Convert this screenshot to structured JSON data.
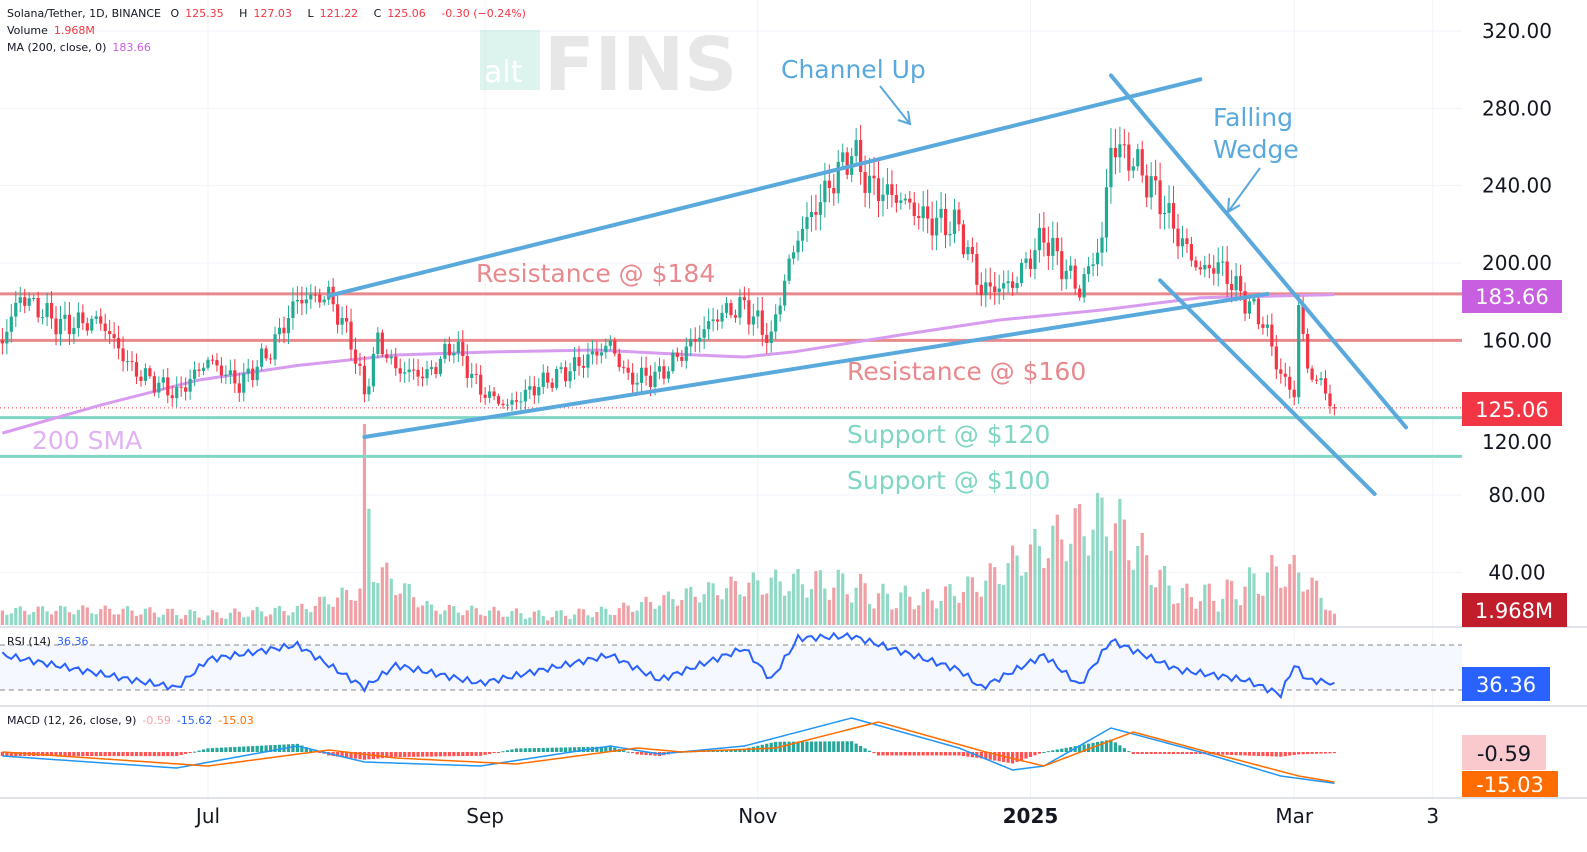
{
  "header": {
    "symbol": "Solana/Tether, 1D, BINANCE",
    "open_label": "O",
    "open": "125.35",
    "high_label": "H",
    "high": "127.03",
    "low_label": "L",
    "low": "121.22",
    "close_label": "C",
    "close": "125.06",
    "change": "-0.30 (−0.24%)",
    "volume_label": "Volume",
    "volume": "1.968M",
    "ma_label": "MA (200, close, 0)",
    "ma": "183.66"
  },
  "rsi_legend": {
    "label": "RSI (14)",
    "value": "36.36"
  },
  "macd_legend": {
    "label": "MACD (12, 26, close, 9)",
    "hist": "-0.59",
    "macd": "-15.62",
    "signal": "-15.03"
  },
  "watermark": {
    "text_alt": "alt",
    "text_fins": "FINS"
  },
  "badges": {
    "price": "125.06",
    "ma": "183.66",
    "volume": "1.968M",
    "rsi": "36.36",
    "macd_hist": "-0.59",
    "macd_signal": "-15.03"
  },
  "colors": {
    "up": "#22ab94",
    "down": "#f23645",
    "ma": "#d79cf0",
    "trendline": "#5aa9dd",
    "resistance": "#e8898d",
    "support": "#7fd6c4",
    "rsi": "#2962ff",
    "macd": "#2196f3",
    "signal": "#ff6d00"
  },
  "annotations": {
    "channel_up": "Channel Up",
    "falling_wedge_1": "Falling",
    "falling_wedge_2": "Wedge",
    "resistance_184": "Resistance @ $184",
    "resistance_160": "Resistance @ $160",
    "support_120": "Support @ $120",
    "support_100": "Support @ $100",
    "sma_200": "200 SMA"
  },
  "chart_data": {
    "type": "candlestick",
    "title": "Solana/Tether, 1D, BINANCE",
    "price_axis": {
      "ticks": [
        "320.00",
        "280.00",
        "240.00",
        "200.00",
        "160.00",
        "120.00",
        "80.00",
        "40.00"
      ],
      "ylim": [
        20,
        330
      ]
    },
    "time_axis": {
      "ticks": [
        {
          "label": "Jul",
          "date": "2024-07-01"
        },
        {
          "label": "Sep",
          "date": "2024-09-01"
        },
        {
          "label": "Nov",
          "date": "2024-11-01"
        },
        {
          "label": "2025",
          "date": "2025-01-01",
          "bold": true
        },
        {
          "label": "Mar",
          "date": "2025-03-01"
        },
        {
          "label": "3",
          "date": "2025-04-01"
        }
      ]
    },
    "close_keypoints": [
      [
        "2024-05-16",
        160
      ],
      [
        "2024-05-20",
        183
      ],
      [
        "2024-05-29",
        168
      ],
      [
        "2024-06-07",
        170
      ],
      [
        "2024-06-14",
        145
      ],
      [
        "2024-06-24",
        132
      ],
      [
        "2024-07-01",
        150
      ],
      [
        "2024-07-08",
        137
      ],
      [
        "2024-07-15",
        155
      ],
      [
        "2024-07-21",
        181
      ],
      [
        "2024-07-28",
        183
      ],
      [
        "2024-08-02",
        160
      ],
      [
        "2024-08-05",
        132
      ],
      [
        "2024-08-08",
        160
      ],
      [
        "2024-08-12",
        145
      ],
      [
        "2024-08-19",
        142
      ],
      [
        "2024-08-25",
        158
      ],
      [
        "2024-08-31",
        134
      ],
      [
        "2024-09-06",
        126
      ],
      [
        "2024-09-13",
        137
      ],
      [
        "2024-09-20",
        145
      ],
      [
        "2024-09-29",
        158
      ],
      [
        "2024-10-03",
        140
      ],
      [
        "2024-10-10",
        142
      ],
      [
        "2024-10-17",
        158
      ],
      [
        "2024-10-23",
        173
      ],
      [
        "2024-10-29",
        178
      ],
      [
        "2024-11-04",
        160
      ],
      [
        "2024-11-06",
        183
      ],
      [
        "2024-11-10",
        214
      ],
      [
        "2024-11-17",
        240
      ],
      [
        "2024-11-22",
        258
      ],
      [
        "2024-11-26",
        240
      ],
      [
        "2024-12-03",
        233
      ],
      [
        "2024-12-09",
        222
      ],
      [
        "2024-12-16",
        219
      ],
      [
        "2024-12-21",
        186
      ],
      [
        "2024-12-28",
        189
      ],
      [
        "2025-01-04",
        214
      ],
      [
        "2025-01-08",
        199
      ],
      [
        "2025-01-12",
        186
      ],
      [
        "2025-01-17",
        212
      ],
      [
        "2025-01-19",
        261
      ],
      [
        "2025-01-24",
        253
      ],
      [
        "2025-01-30",
        233
      ],
      [
        "2025-02-03",
        214
      ],
      [
        "2025-02-08",
        196
      ],
      [
        "2025-02-12",
        199
      ],
      [
        "2025-02-18",
        181
      ],
      [
        "2025-02-22",
        170
      ],
      [
        "2025-02-26",
        142
      ],
      [
        "2025-03-01",
        132
      ],
      [
        "2025-03-02",
        178
      ],
      [
        "2025-03-04",
        145
      ],
      [
        "2025-03-08",
        134
      ],
      [
        "2025-03-10",
        125.06
      ]
    ],
    "last_candle": {
      "date": "2025-03-10",
      "open": 125.35,
      "high": 127.03,
      "low": 121.22,
      "close": 125.06
    },
    "sma200": [
      [
        "2024-05-16",
        112
      ],
      [
        "2024-06-07",
        126.5
      ],
      [
        "2024-06-29",
        139.5
      ],
      [
        "2024-07-21",
        147
      ],
      [
        "2024-08-12",
        152.4
      ],
      [
        "2024-09-03",
        154
      ],
      [
        "2024-09-26",
        155
      ],
      [
        "2024-10-18",
        152.4
      ],
      [
        "2024-10-29",
        151.4
      ],
      [
        "2024-11-09",
        154
      ],
      [
        "2024-12-03",
        162.8
      ],
      [
        "2024-12-25",
        170.5
      ],
      [
        "2025-01-17",
        175.7
      ],
      [
        "2025-02-08",
        182
      ],
      [
        "2025-03-10",
        183.66
      ]
    ],
    "volume_keypoints_M": [
      [
        "2024-05-16",
        2.5
      ],
      [
        "2024-06-24",
        3
      ],
      [
        "2024-07-21",
        3
      ],
      [
        "2024-08-04",
        6
      ],
      [
        "2024-08-05",
        27
      ],
      [
        "2024-08-07",
        10
      ],
      [
        "2024-08-20",
        3
      ],
      [
        "2024-09-29",
        3
      ],
      [
        "2024-11-06",
        8
      ],
      [
        "2024-11-22",
        10
      ],
      [
        "2024-12-10",
        6
      ],
      [
        "2024-12-21",
        8
      ],
      [
        "2025-01-19",
        20
      ],
      [
        "2025-02-03",
        7
      ],
      [
        "2025-02-26",
        12
      ],
      [
        "2025-03-03",
        10
      ],
      [
        "2025-03-10",
        1.968
      ]
    ],
    "levels": [
      {
        "price": 184,
        "kind": "resistance"
      },
      {
        "price": 160,
        "kind": "resistance"
      },
      {
        "price": 120,
        "kind": "support"
      },
      {
        "price": 100,
        "kind": "support"
      }
    ],
    "trendlines": [
      {
        "name": "channel-upper",
        "from": [
          "2024-07-28",
          183
        ],
        "to": [
          "2025-02-08",
          295
        ]
      },
      {
        "name": "channel-lower",
        "from": [
          "2024-08-05",
          110
        ],
        "to": [
          "2025-02-23",
          184
        ]
      },
      {
        "name": "wedge-upper",
        "from": [
          "2025-01-19",
          297
        ],
        "to": [
          "2025-03-26",
          115
        ]
      },
      {
        "name": "wedge-lower",
        "from": [
          "2025-01-30",
          191
        ],
        "to": [
          "2025-03-19",
          80.5
        ]
      }
    ],
    "rsi": {
      "levels": [
        70,
        30
      ],
      "keypoints": [
        [
          "2024-05-16",
          61
        ],
        [
          "2024-06-14",
          39
        ],
        [
          "2024-06-24",
          32
        ],
        [
          "2024-07-01",
          57
        ],
        [
          "2024-07-21",
          70
        ],
        [
          "2024-08-05",
          32
        ],
        [
          "2024-08-12",
          52
        ],
        [
          "2024-08-31",
          36
        ],
        [
          "2024-09-29",
          61
        ],
        [
          "2024-10-10",
          39
        ],
        [
          "2024-10-29",
          67
        ],
        [
          "2024-11-04",
          39
        ],
        [
          "2024-11-10",
          76
        ],
        [
          "2024-11-22",
          78
        ],
        [
          "2024-12-16",
          48
        ],
        [
          "2024-12-21",
          32
        ],
        [
          "2025-01-04",
          61
        ],
        [
          "2025-01-12",
          34
        ],
        [
          "2025-01-19",
          74
        ],
        [
          "2025-02-03",
          48
        ],
        [
          "2025-02-18",
          39
        ],
        [
          "2025-02-26",
          26
        ],
        [
          "2025-03-01",
          52
        ],
        [
          "2025-03-04",
          39
        ],
        [
          "2025-03-10",
          36.36
        ]
      ]
    },
    "macd": {
      "macd": [
        [
          "2024-05-16",
          -2
        ],
        [
          "2024-06-24",
          -8
        ],
        [
          "2024-07-21",
          3
        ],
        [
          "2024-08-05",
          -5
        ],
        [
          "2024-08-31",
          -7
        ],
        [
          "2024-09-29",
          3
        ],
        [
          "2024-10-10",
          -1
        ],
        [
          "2024-10-29",
          3
        ],
        [
          "2024-11-22",
          17
        ],
        [
          "2024-12-16",
          2
        ],
        [
          "2024-12-28",
          -9
        ],
        [
          "2025-01-04",
          -7
        ],
        [
          "2025-01-19",
          12
        ],
        [
          "2025-02-08",
          0
        ],
        [
          "2025-02-26",
          -12
        ],
        [
          "2025-03-10",
          -15.62
        ]
      ],
      "signal": [
        [
          "2024-05-16",
          0
        ],
        [
          "2024-07-01",
          -7
        ],
        [
          "2024-07-28",
          1
        ],
        [
          "2024-08-12",
          -3
        ],
        [
          "2024-09-08",
          -6
        ],
        [
          "2024-10-05",
          2
        ],
        [
          "2024-10-15",
          0
        ],
        [
          "2024-11-05",
          2
        ],
        [
          "2024-11-28",
          15
        ],
        [
          "2024-12-22",
          0
        ],
        [
          "2025-01-04",
          -7
        ],
        [
          "2025-01-24",
          10
        ],
        [
          "2025-02-13",
          -2
        ],
        [
          "2025-03-02",
          -12
        ],
        [
          "2025-03-10",
          -15.03
        ]
      ]
    }
  }
}
